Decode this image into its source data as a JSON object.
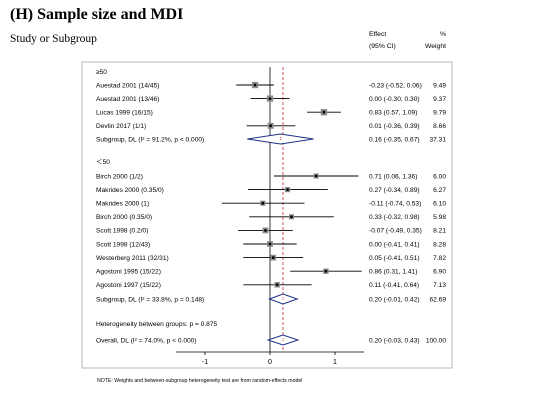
{
  "title": "(H) Sample size and MDI",
  "subtitle": "Study or Subgroup",
  "headers": {
    "effect_line1": "Effect",
    "effect_line2": "(95% CI)",
    "weight_line1": "%",
    "weight_line2": "Weight"
  },
  "note": "NOTE: Weights and between-subgroup heterogeneity test are from random-effects model",
  "chart_data": {
    "type": "forest",
    "xlim": [
      -1.45,
      1.45
    ],
    "x_ticks": [
      -1,
      0,
      1
    ],
    "overall_effect_line": 0.2,
    "groups": [
      {
        "label": "≥50",
        "studies": [
          {
            "label": "Auestad 2001  (14/45)",
            "effect": -0.23,
            "lo": -0.52,
            "hi": 0.06,
            "ci_text": "-0.23 (-0.52, 0.06)",
            "weight": "9.49"
          },
          {
            "label": "Auestad 2001  (13/46)",
            "effect": 0.0,
            "lo": -0.3,
            "hi": 0.3,
            "ci_text": "0.00 (-0.30, 0.30)",
            "weight": "9.37"
          },
          {
            "label": "Lucas 1999 (16/15)",
            "effect": 0.83,
            "lo": 0.57,
            "hi": 1.09,
            "ci_text": "0.83 (0.57, 1.09)",
            "weight": "9.79"
          },
          {
            "label": "Devlin 2017   (1/1)",
            "effect": 0.01,
            "lo": -0.36,
            "hi": 0.39,
            "ci_text": "0.01 (-0.36, 0.39)",
            "weight": "8.66"
          }
        ],
        "subgroup": {
          "label": "Subgroup, DL (I² = 91.2%, p < 0.000)",
          "effect": 0.16,
          "lo": -0.35,
          "hi": 0.67,
          "ci_text": "0.16 (-0.35, 0.67)",
          "weight": "37.31"
        }
      },
      {
        "label": "＜50",
        "studies": [
          {
            "label": "Birch 2000  (1/2)",
            "effect": 0.71,
            "lo": 0.06,
            "hi": 1.36,
            "ci_text": "0.71 (0.06, 1.36)",
            "weight": "6.00"
          },
          {
            "label": "Makrides 2000 (0.35/0)",
            "effect": 0.27,
            "lo": -0.34,
            "hi": 0.89,
            "ci_text": "0.27 (-0.34, 0.89)",
            "weight": "6.27"
          },
          {
            "label": "Makrides 2000 (1)",
            "effect": -0.11,
            "lo": -0.74,
            "hi": 0.53,
            "ci_text": "-0.11 (-0.74, 0.53)",
            "weight": "6.10"
          },
          {
            "label": "Birch 2000  (0.35/0)",
            "effect": 0.33,
            "lo": -0.32,
            "hi": 0.98,
            "ci_text": "0.33 (-0.32, 0.98)",
            "weight": "5.98"
          },
          {
            "label": "Scott 1998 (0.2/0)",
            "effect": -0.07,
            "lo": -0.49,
            "hi": 0.35,
            "ci_text": "-0.07 (-0.49, 0.35)",
            "weight": "8.21"
          },
          {
            "label": "Scott 1998 (12/43)",
            "effect": 0.0,
            "lo": -0.41,
            "hi": 0.41,
            "ci_text": "0.00 (-0.41, 0.41)",
            "weight": "8.28"
          },
          {
            "label": "Westerberg 2011 (32/31)",
            "effect": 0.05,
            "lo": -0.41,
            "hi": 0.51,
            "ci_text": "0.05 (-0.41, 0.51)",
            "weight": "7.82"
          },
          {
            "label": "Agostoni 1995 (15/22)",
            "effect": 0.86,
            "lo": 0.31,
            "hi": 1.41,
            "ci_text": "0.86 (0.31, 1.41)",
            "weight": "6.90"
          },
          {
            "label": "Agostoni 1997  (15/22)",
            "effect": 0.11,
            "lo": -0.41,
            "hi": 0.64,
            "ci_text": "0.11 (-0.41, 0.64)",
            "weight": "7.13"
          }
        ],
        "subgroup": {
          "label": "Subgroup, DL (I² = 33.8%, p = 0.148)",
          "effect": 0.2,
          "lo": -0.01,
          "hi": 0.42,
          "ci_text": "0.20 (-0.01, 0.42)",
          "weight": "62.69"
        }
      }
    ],
    "heterogeneity_text": "Heterogeneity between groups: p = 0.875",
    "overall": {
      "label": "Overall, DL (I² = 74.0%, p < 0.000)",
      "effect": 0.2,
      "lo": -0.03,
      "hi": 0.43,
      "ci_text": "0.20 (-0.03, 0.43)",
      "weight": "100.00"
    }
  }
}
